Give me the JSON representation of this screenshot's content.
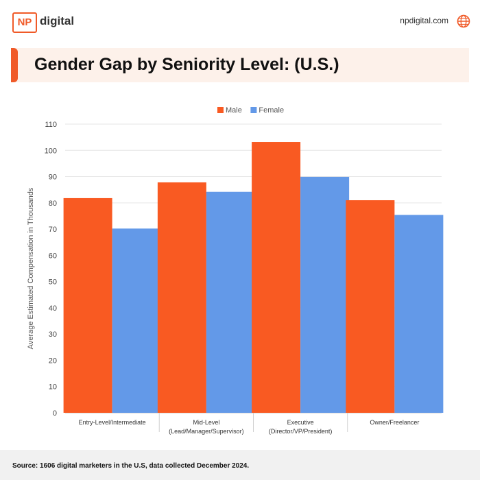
{
  "brand": {
    "logo_mark": "NP",
    "logo_text": "digital",
    "url": "npdigital.com",
    "accent": "#f05a28",
    "globe_icon": "globe-icon"
  },
  "header": {
    "title": "Gender Gap by Seniority Level: (U.S.)"
  },
  "footer": {
    "source": "Source: 1606 digital marketers in the U.S, data collected December 2024."
  },
  "chart_data": {
    "type": "bar",
    "title": "Gender Gap by Seniority Level: (U.S.)",
    "xlabel": "",
    "ylabel": "Average Estimated Compensation in Thousands",
    "ylim": [
      0,
      110
    ],
    "yticks": [
      0,
      10,
      20,
      30,
      40,
      50,
      60,
      70,
      80,
      90,
      100,
      110
    ],
    "grid": true,
    "legend_position": "top-center",
    "categories": [
      [
        "Entry-Level/Intermediate"
      ],
      [
        "Mid-Level",
        "(Lead/Manager/Supervisor)"
      ],
      [
        "Executive",
        "(Director/VP/President)"
      ],
      [
        "Owner/Freelancer"
      ]
    ],
    "series": [
      {
        "name": "Male",
        "color": "#f95a22",
        "values": [
          81.8,
          87.8,
          103.2,
          81.0
        ]
      },
      {
        "name": "Female",
        "color": "#6399e8",
        "values": [
          70.2,
          84.2,
          89.9,
          75.4
        ]
      }
    ]
  }
}
